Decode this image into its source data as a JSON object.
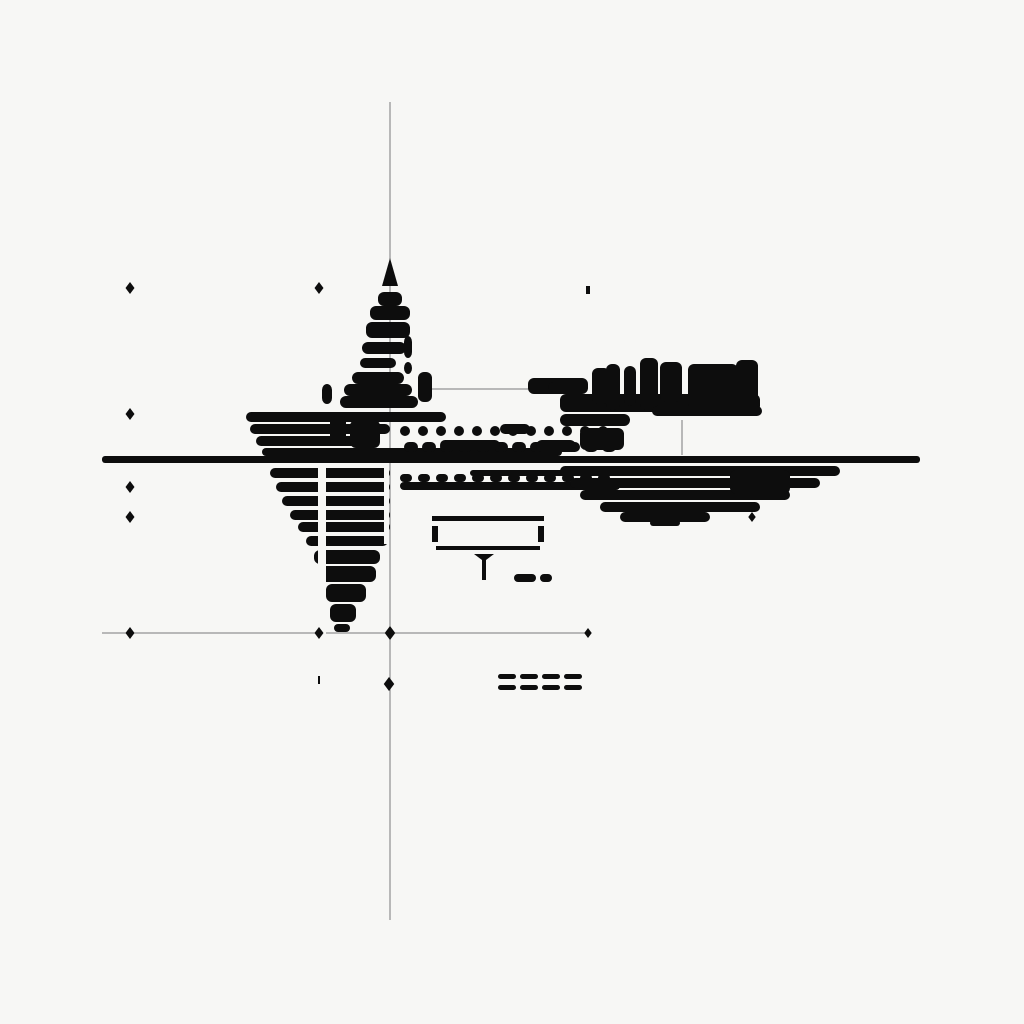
{
  "artwork": {
    "kind": "abstract monochrome ink composition",
    "icon": "ink-glyph-composition",
    "colors": {
      "background": "#f7f7f5",
      "ink": "#0d0d0d",
      "guide": "#7a7a7a"
    }
  }
}
